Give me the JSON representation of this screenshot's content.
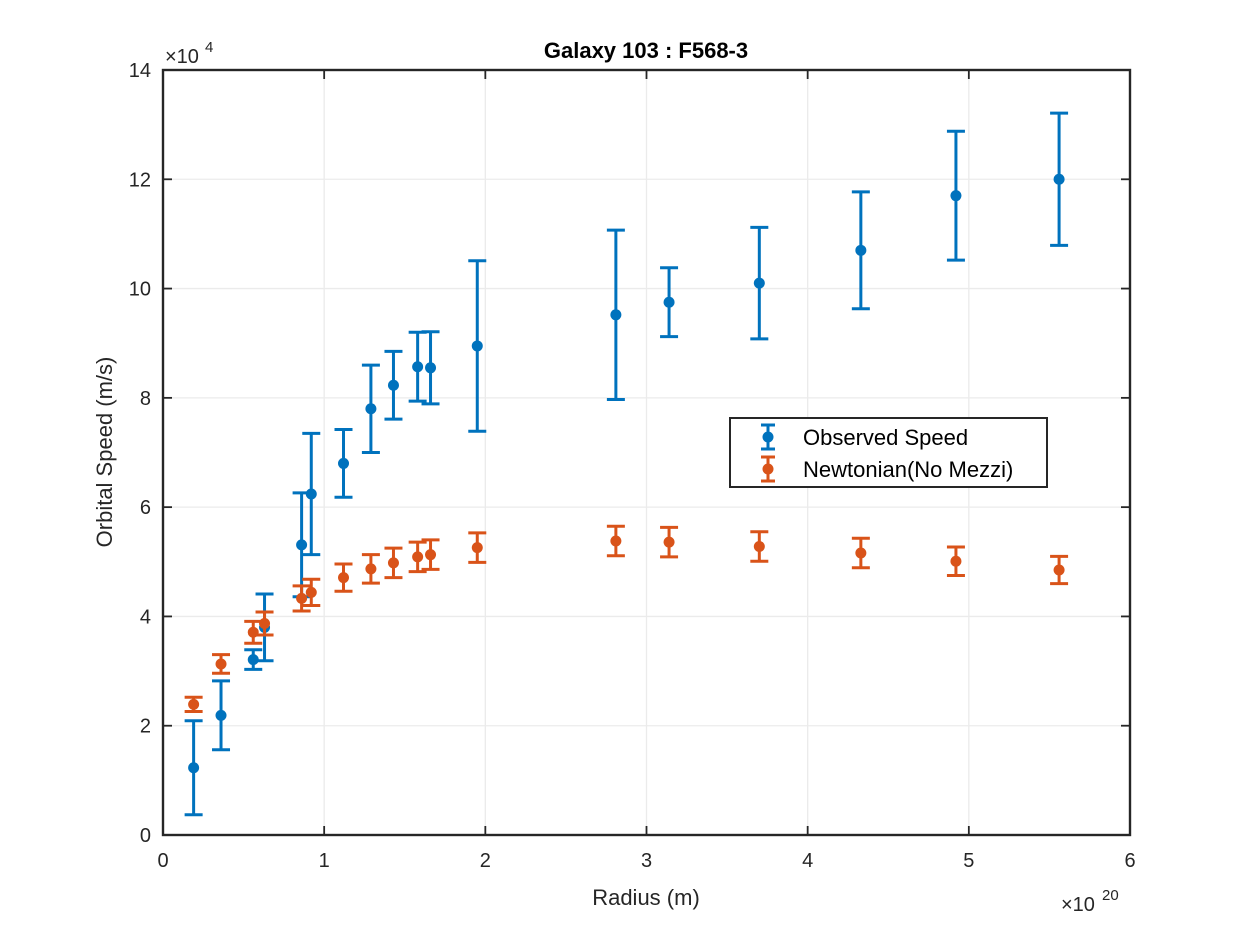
{
  "chart_data": {
    "type": "scatter",
    "title": "Galaxy 103 : F568-3",
    "xlabel": "Radius (m)",
    "ylabel": "Orbital Speed (m/s)",
    "x_scale_base": "×10",
    "x_scale_exp": "20",
    "y_scale_base": "×10",
    "y_scale_exp": "4",
    "xlim": [
      0,
      6
    ],
    "ylim": [
      0,
      14
    ],
    "xticks": [
      0,
      1,
      2,
      3,
      4,
      5,
      6
    ],
    "yticks": [
      0,
      2,
      4,
      6,
      8,
      10,
      12,
      14
    ],
    "xtick_labels": [
      "0",
      "1",
      "2",
      "3",
      "4",
      "5",
      "6"
    ],
    "ytick_labels": [
      "0",
      "2",
      "4",
      "6",
      "8",
      "10",
      "12",
      "14"
    ],
    "grid": true,
    "legend_position": "right-middle",
    "series": [
      {
        "name": "Observed Speed",
        "color": "#0072BD",
        "points": [
          {
            "x": 0.19,
            "y": 1.23,
            "err": 0.86
          },
          {
            "x": 0.36,
            "y": 2.19,
            "err": 0.63
          },
          {
            "x": 0.56,
            "y": 3.21,
            "err": 0.18
          },
          {
            "x": 0.63,
            "y": 3.8,
            "err": 0.61
          },
          {
            "x": 0.86,
            "y": 5.31,
            "err": 0.95
          },
          {
            "x": 0.92,
            "y": 6.24,
            "err": 1.11
          },
          {
            "x": 1.12,
            "y": 6.8,
            "err": 0.62
          },
          {
            "x": 1.29,
            "y": 7.8,
            "err": 0.8
          },
          {
            "x": 1.43,
            "y": 8.23,
            "err": 0.62
          },
          {
            "x": 1.58,
            "y": 8.57,
            "err": 0.63
          },
          {
            "x": 1.66,
            "y": 8.55,
            "err": 0.66
          },
          {
            "x": 1.95,
            "y": 8.95,
            "err": 1.56
          },
          {
            "x": 2.81,
            "y": 9.52,
            "err": 1.55
          },
          {
            "x": 3.14,
            "y": 9.75,
            "err": 0.63
          },
          {
            "x": 3.7,
            "y": 10.1,
            "err": 1.02
          },
          {
            "x": 4.33,
            "y": 10.7,
            "err": 1.07
          },
          {
            "x": 4.92,
            "y": 11.7,
            "err": 1.18
          },
          {
            "x": 5.56,
            "y": 12.0,
            "err": 1.21
          }
        ]
      },
      {
        "name": "Newtonian(No Mezzi)",
        "color": "#D95319",
        "points": [
          {
            "x": 0.19,
            "y": 2.39,
            "err": 0.13
          },
          {
            "x": 0.36,
            "y": 3.13,
            "err": 0.17
          },
          {
            "x": 0.56,
            "y": 3.71,
            "err": 0.2
          },
          {
            "x": 0.63,
            "y": 3.87,
            "err": 0.21
          },
          {
            "x": 0.86,
            "y": 4.33,
            "err": 0.23
          },
          {
            "x": 0.92,
            "y": 4.44,
            "err": 0.24
          },
          {
            "x": 1.12,
            "y": 4.71,
            "err": 0.25
          },
          {
            "x": 1.29,
            "y": 4.87,
            "err": 0.26
          },
          {
            "x": 1.43,
            "y": 4.98,
            "err": 0.27
          },
          {
            "x": 1.58,
            "y": 5.09,
            "err": 0.27
          },
          {
            "x": 1.66,
            "y": 5.13,
            "err": 0.27
          },
          {
            "x": 1.95,
            "y": 5.26,
            "err": 0.27
          },
          {
            "x": 2.81,
            "y": 5.38,
            "err": 0.27
          },
          {
            "x": 3.14,
            "y": 5.36,
            "err": 0.27
          },
          {
            "x": 3.7,
            "y": 5.28,
            "err": 0.27
          },
          {
            "x": 4.33,
            "y": 5.16,
            "err": 0.27
          },
          {
            "x": 4.92,
            "y": 5.01,
            "err": 0.26
          },
          {
            "x": 5.56,
            "y": 4.85,
            "err": 0.25
          }
        ]
      }
    ]
  }
}
